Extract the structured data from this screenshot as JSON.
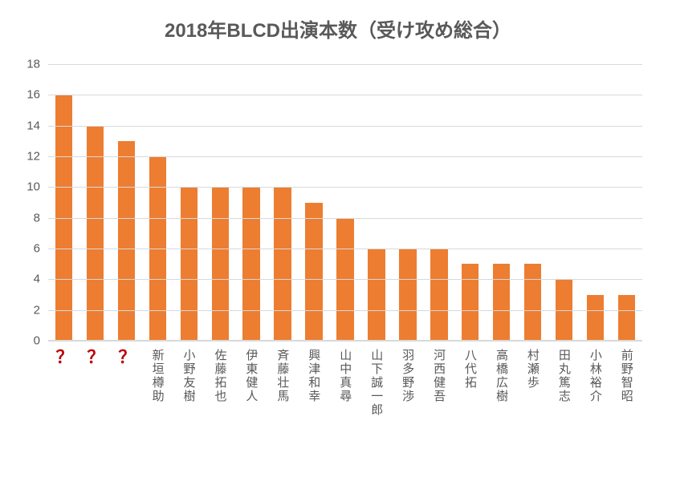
{
  "chart": {
    "type": "bar",
    "title": "2018年BLCD出演本数（受け攻め総合）",
    "title_fontsize": 24,
    "title_color": "#595959",
    "background_color": "#ffffff",
    "plot_background": "#ffffff",
    "grid_color": "#d9d9d9",
    "axis_color": "#d9d9d9",
    "label_color": "#595959",
    "label_fontsize": 15,
    "ylim": [
      0,
      18
    ],
    "ytick_step": 2,
    "yticks": [
      0,
      2,
      4,
      6,
      8,
      10,
      12,
      14,
      16,
      18
    ],
    "bar_color": "#ed7d31",
    "bar_width_ratio": 0.55,
    "mystery_label_color": "#c00000",
    "categories": [
      {
        "label": "？",
        "value": 16,
        "mystery": true
      },
      {
        "label": "？",
        "value": 14,
        "mystery": true
      },
      {
        "label": "？",
        "value": 13,
        "mystery": true
      },
      {
        "label": "新垣樽助",
        "value": 12,
        "mystery": false
      },
      {
        "label": "小野友樹",
        "value": 10,
        "mystery": false
      },
      {
        "label": "佐藤拓也",
        "value": 10,
        "mystery": false
      },
      {
        "label": "伊東健人",
        "value": 10,
        "mystery": false
      },
      {
        "label": "斉藤壮馬",
        "value": 10,
        "mystery": false
      },
      {
        "label": "興津和幸",
        "value": 9,
        "mystery": false
      },
      {
        "label": "山中真尋",
        "value": 8,
        "mystery": false
      },
      {
        "label": "山下誠一郎",
        "value": 6,
        "mystery": false
      },
      {
        "label": "羽多野渉",
        "value": 6,
        "mystery": false
      },
      {
        "label": "河西健吾",
        "value": 6,
        "mystery": false
      },
      {
        "label": "八代拓",
        "value": 5,
        "mystery": false
      },
      {
        "label": "高橋広樹",
        "value": 5,
        "mystery": false
      },
      {
        "label": "村瀬歩",
        "value": 5,
        "mystery": false
      },
      {
        "label": "田丸篤志",
        "value": 4,
        "mystery": false
      },
      {
        "label": "小林裕介",
        "value": 3,
        "mystery": false
      },
      {
        "label": "前野智昭",
        "value": 3,
        "mystery": false
      }
    ]
  }
}
